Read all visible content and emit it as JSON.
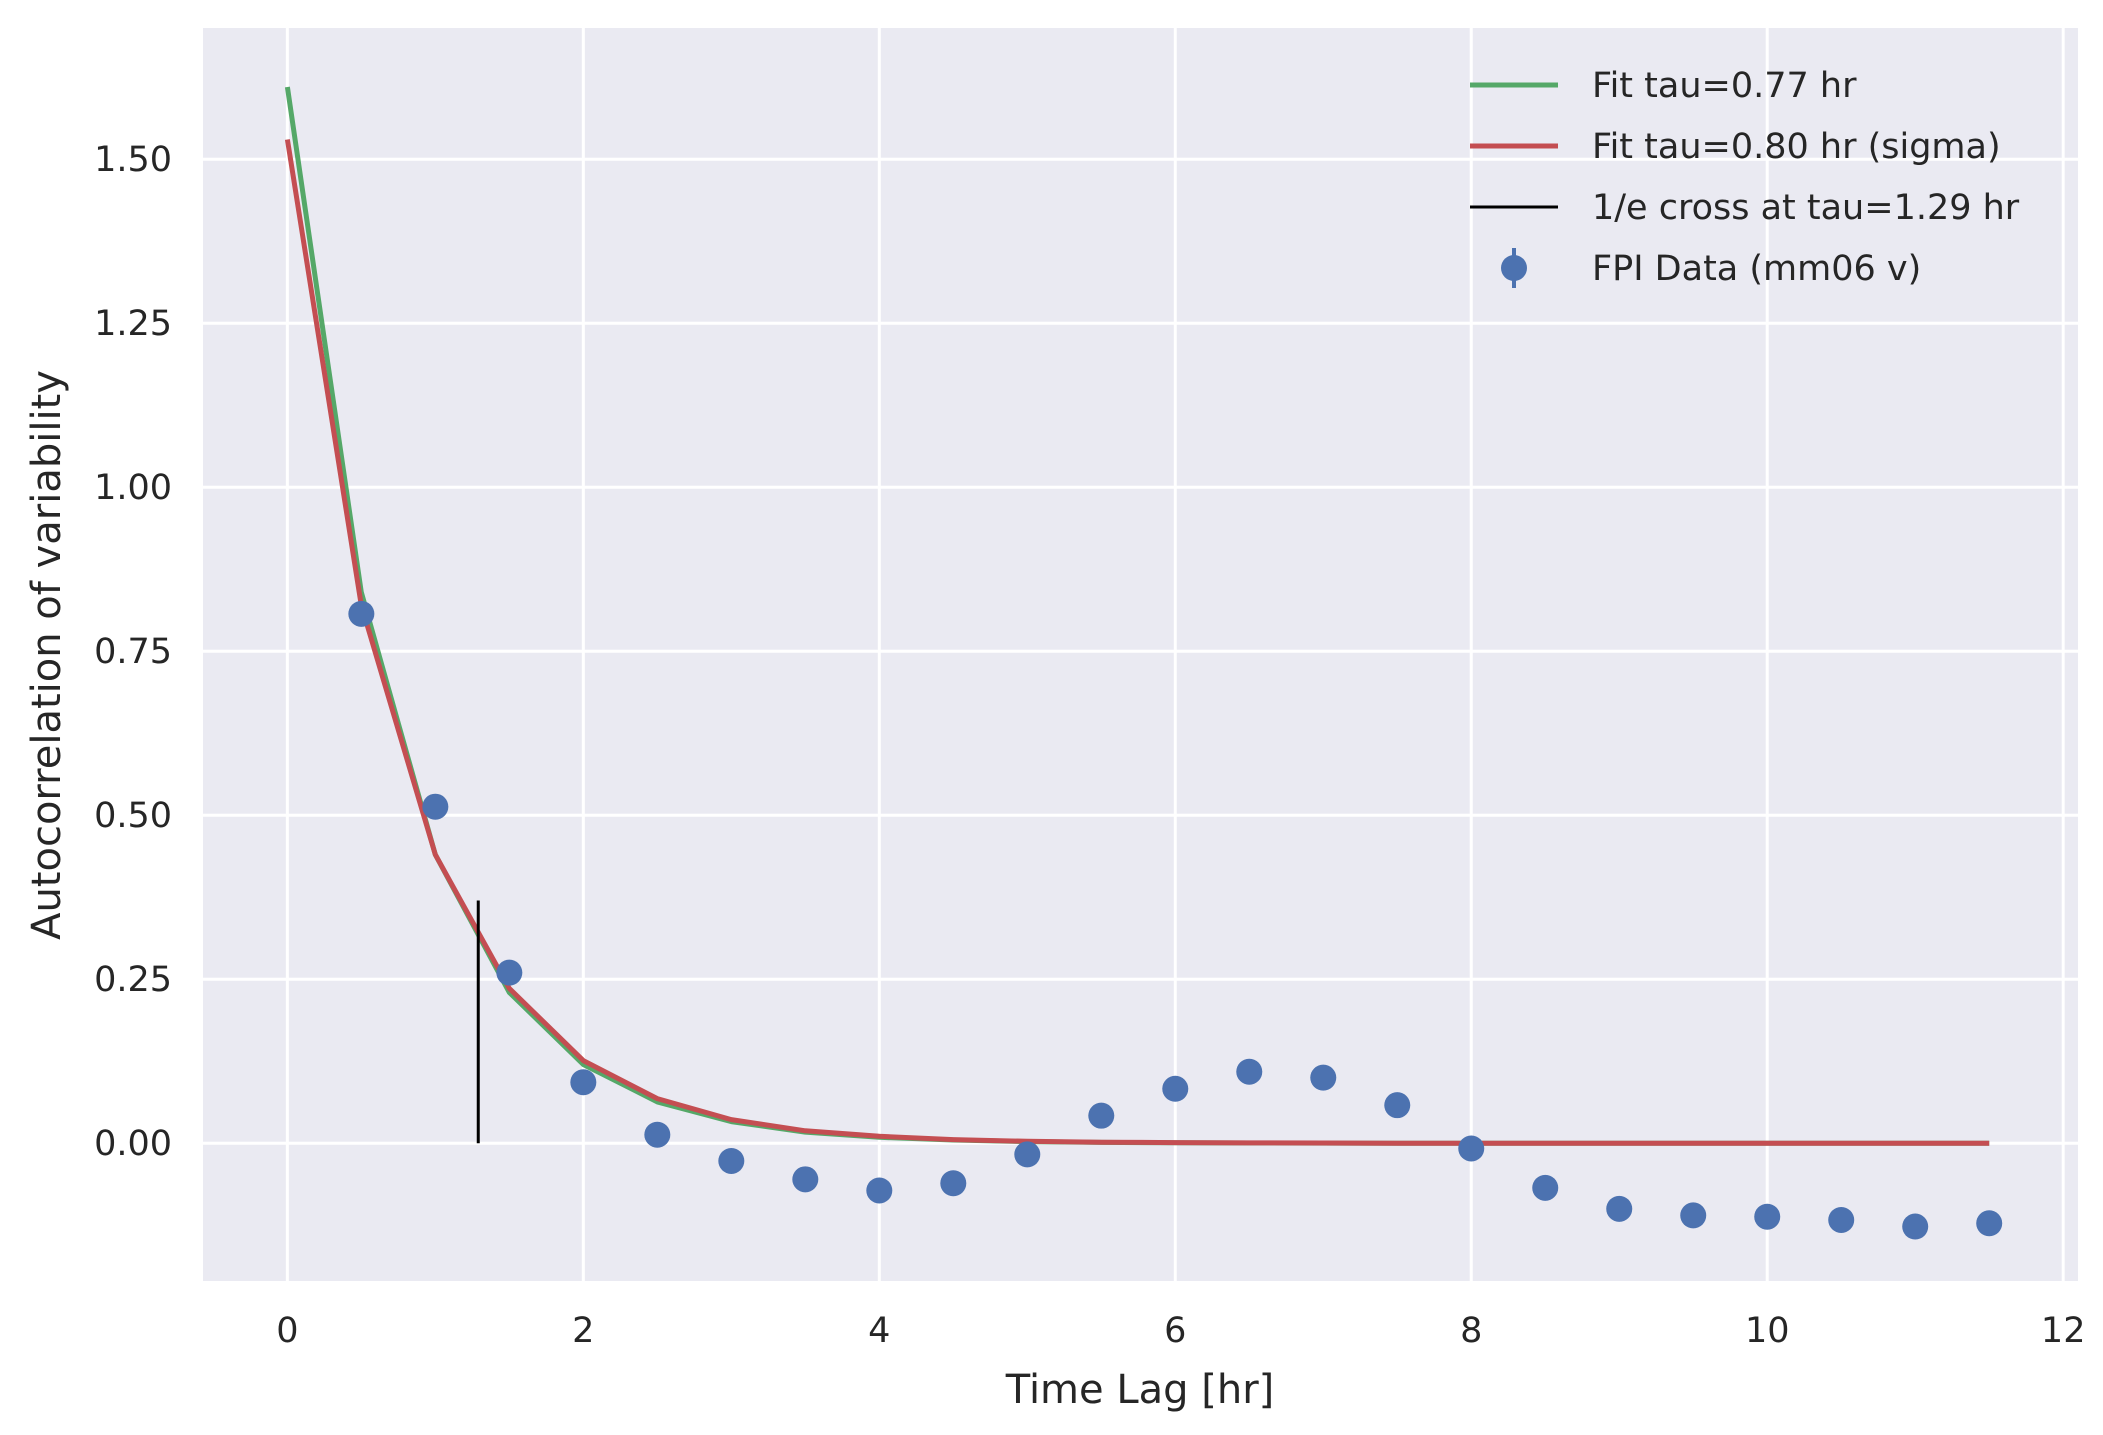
{
  "chart_data": {
    "type": "line",
    "title": "",
    "xlabel": "Time Lag [hr]",
    "ylabel": "Autocorrelation of variability",
    "xlim": [
      -0.57,
      12.1
    ],
    "ylim": [
      -0.21,
      1.7
    ],
    "xticks": [
      0,
      2,
      4,
      6,
      8,
      10,
      12
    ],
    "xtick_labels": [
      "0",
      "2",
      "4",
      "6",
      "8",
      "10",
      "12"
    ],
    "yticks": [
      0,
      0.25,
      0.5,
      0.75,
      1.0,
      1.25,
      1.5
    ],
    "ytick_labels": [
      "0.00",
      "0.25",
      "0.50",
      "0.75",
      "1.00",
      "1.25",
      "1.50"
    ],
    "grid": true,
    "legend_position": "top-right",
    "background": "#eaeaf2",
    "series": [
      {
        "name": "Fit tau=0.77 hr",
        "kind": "line",
        "color": "#55a868",
        "x": [
          0,
          0.5,
          1,
          1.5,
          2,
          2.5,
          3,
          3.5,
          4,
          4.5,
          5,
          5.5,
          6,
          6.5,
          7,
          7.5,
          8,
          8.5,
          9,
          9.5,
          10,
          10.5,
          11,
          11.5
        ],
        "y": [
          1.61,
          0.84,
          0.44,
          0.23,
          0.12,
          0.063,
          0.033,
          0.017,
          0.009,
          0.005,
          0.0025,
          0.0013,
          0.0007,
          0.0004,
          0.0002,
          0.0001,
          0,
          0,
          0,
          0,
          0,
          0,
          0,
          0
        ]
      },
      {
        "name": "Fit tau=0.80 hr (sigma)",
        "kind": "line",
        "color": "#c44e52",
        "x": [
          0,
          0.5,
          1,
          1.5,
          2,
          2.5,
          3,
          3.5,
          4,
          4.5,
          5,
          5.5,
          6,
          6.5,
          7,
          7.5,
          8,
          8.5,
          9,
          9.5,
          10,
          10.5,
          11,
          11.5
        ],
        "y": [
          1.53,
          0.82,
          0.44,
          0.236,
          0.126,
          0.068,
          0.036,
          0.019,
          0.0105,
          0.0056,
          0.003,
          0.0016,
          0.0009,
          0.0005,
          0.0003,
          0.0001,
          0,
          0,
          0,
          0,
          0,
          0,
          0,
          0
        ]
      },
      {
        "name": "1/e cross at tau=1.29 hr",
        "kind": "vline",
        "color": "#000000",
        "x": 1.29,
        "ymin": 0,
        "ymax": 0.37
      },
      {
        "name": "FPI Data (mm06 v)",
        "kind": "errorbar",
        "color": "#4c72b0",
        "x": [
          0.5,
          1,
          1.5,
          2,
          2.5,
          3,
          3.5,
          4,
          4.5,
          5,
          5.5,
          6,
          6.5,
          7,
          7.5,
          8,
          8.5,
          9,
          9.5,
          10,
          10.5,
          11,
          11.5
        ],
        "y": [
          0.807,
          0.513,
          0.26,
          0.093,
          0.013,
          -0.027,
          -0.055,
          -0.072,
          -0.061,
          -0.017,
          0.042,
          0.083,
          0.109,
          0.1,
          0.058,
          -0.008,
          -0.068,
          -0.1,
          -0.11,
          -0.112,
          -0.117,
          -0.127,
          -0.122
        ]
      }
    ]
  }
}
